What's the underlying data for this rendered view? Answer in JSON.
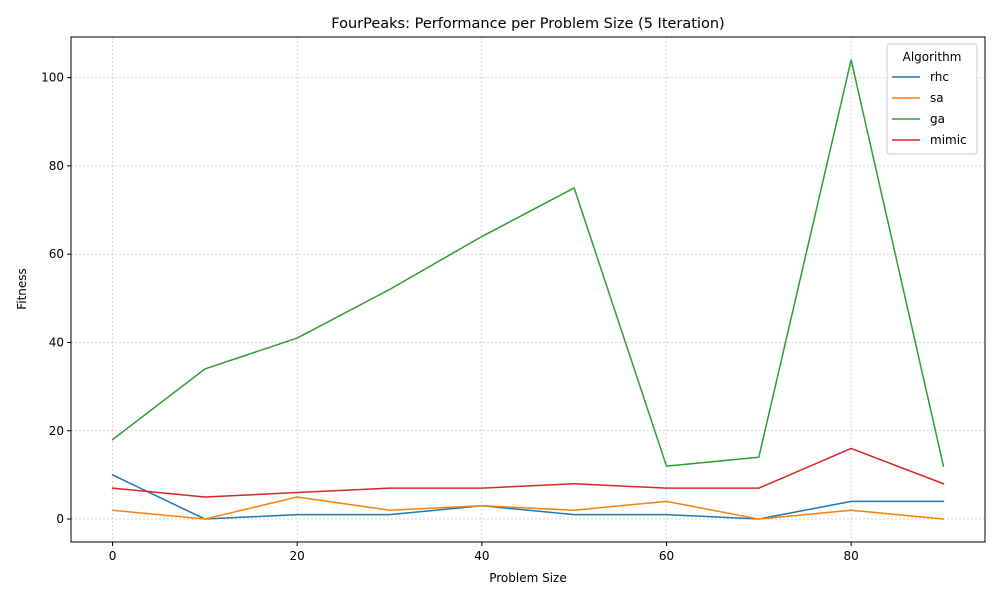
{
  "chart_data": {
    "type": "line",
    "title": "FourPeaks: Performance per Problem Size (5 Iteration)",
    "xlabel": "Problem Size",
    "ylabel": "Fitness",
    "x": [
      0,
      10,
      20,
      30,
      40,
      50,
      60,
      70,
      80,
      90
    ],
    "xlim": [
      -4.5,
      94.5
    ],
    "ylim": [
      -5.2,
      109.2
    ],
    "xticks": [
      0,
      20,
      40,
      60,
      80
    ],
    "yticks": [
      0,
      20,
      40,
      60,
      80,
      100
    ],
    "grid": true,
    "legend": {
      "title": "Algorithm",
      "placement": "top-right"
    },
    "series": [
      {
        "name": "rhc",
        "color": "#1f77b4",
        "values": [
          10,
          0,
          1,
          1,
          3,
          1,
          1,
          0,
          4,
          4
        ]
      },
      {
        "name": "sa",
        "color": "#ff7f0e",
        "values": [
          2,
          0,
          5,
          2,
          3,
          2,
          4,
          0,
          2,
          0
        ]
      },
      {
        "name": "ga",
        "color": "#2ca02c",
        "values": [
          18,
          34,
          41,
          52,
          64,
          75,
          12,
          14,
          104,
          12
        ]
      },
      {
        "name": "mimic",
        "color": "#d62728",
        "values": [
          7,
          5,
          6,
          7,
          7,
          8,
          7,
          7,
          16,
          8
        ]
      }
    ]
  }
}
